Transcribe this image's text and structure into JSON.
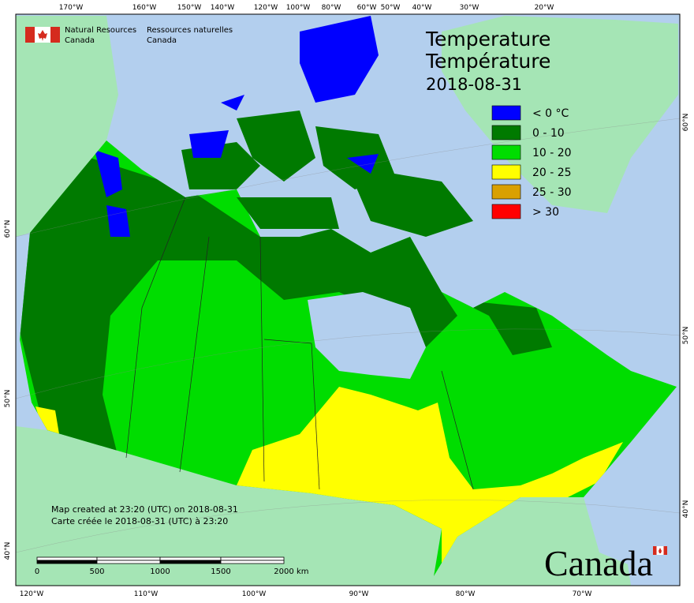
{
  "header": {
    "department_en": [
      "Natural Resources",
      "Canada"
    ],
    "department_fr": [
      "Ressources naturelles",
      "Canada"
    ]
  },
  "title": {
    "en": "Temperature",
    "fr": "Température",
    "date": "2018-08-31"
  },
  "legend": [
    {
      "label": "< 0 °C",
      "color": "#0000ff"
    },
    {
      "label": "0 - 10",
      "color": "#007a00"
    },
    {
      "label": "10 - 20",
      "color": "#00dd00"
    },
    {
      "label": "20 - 25",
      "color": "#ffff00"
    },
    {
      "label": "25 - 30",
      "color": "#d9a000"
    },
    {
      "label": "> 30",
      "color": "#ff0000"
    }
  ],
  "graticule": {
    "top": [
      "170°W",
      "160°W",
      "150°W",
      "140°W",
      "120°W",
      "100°W",
      "80°W",
      "60°W",
      "50°W",
      "40°W",
      "30°W",
      "20°W"
    ],
    "bottom": [
      "120°W",
      "110°W",
      "100°W",
      "90°W",
      "80°W",
      "70°W"
    ],
    "left": [
      "60°N",
      "50°N",
      "40°N"
    ],
    "right": [
      "60°N",
      "50°N",
      "40°N"
    ]
  },
  "footer": {
    "created_en": "Map created at 23:20 (UTC) on 2018-08-31",
    "created_fr": "Carte créée le 2018-08-31 (UTC) à 23:20"
  },
  "scale": {
    "ticks": [
      "0",
      "500",
      "1000",
      "1500",
      "2000"
    ],
    "unit": "km"
  },
  "wordmark": "Canada"
}
